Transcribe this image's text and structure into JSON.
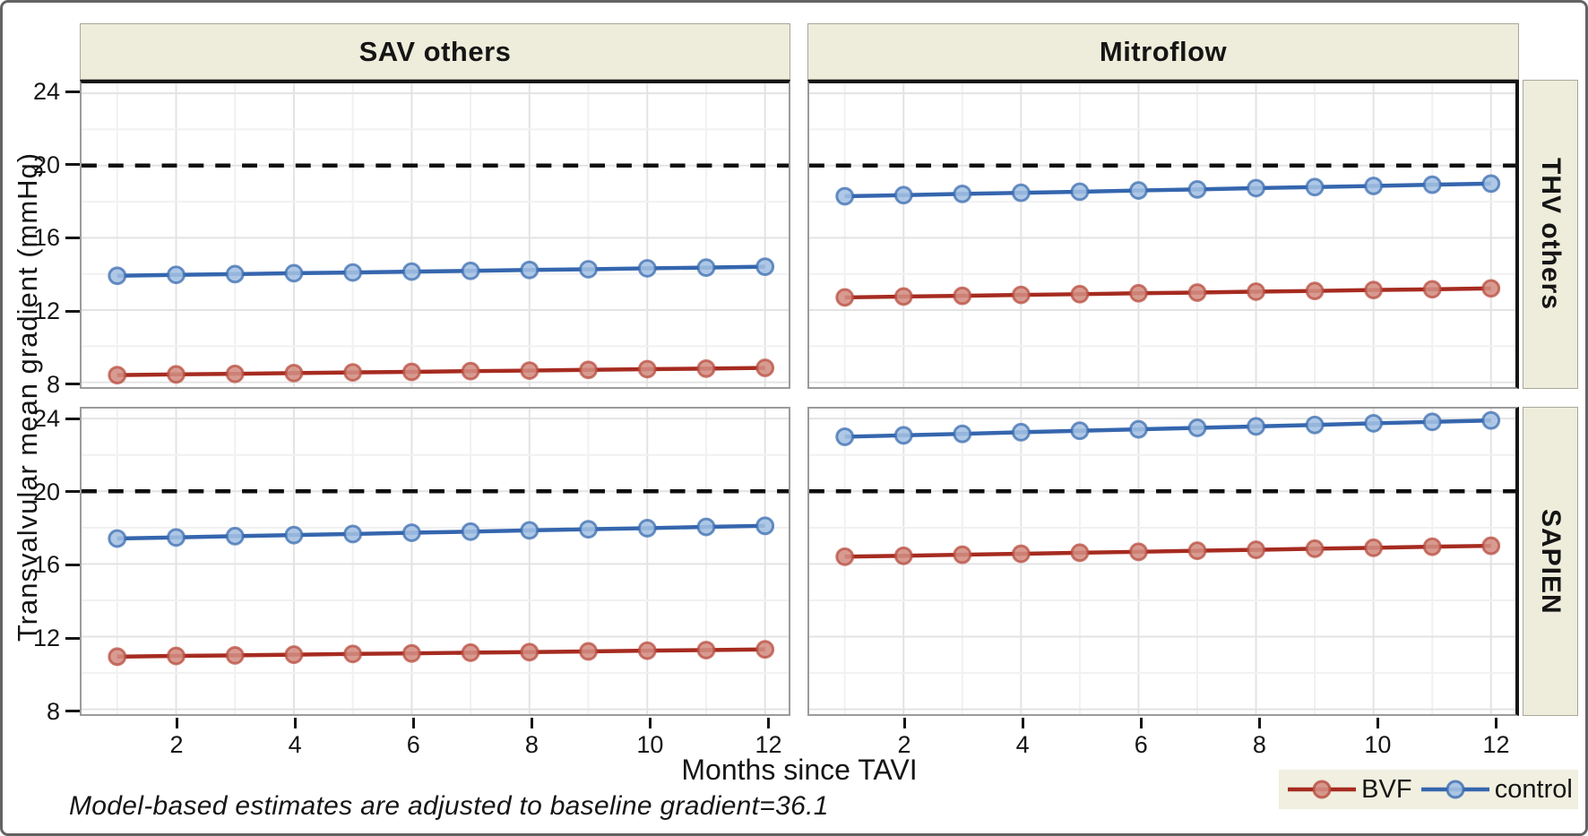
{
  "figure": {
    "y_axis_title": "Transvalvular mean gradient (mmHg)",
    "x_axis_title": "Months since TAVI",
    "footnote": "Model-based estimates are adjusted to baseline gradient=36.1"
  },
  "facets": {
    "columns": [
      "SAV others",
      "Mitroflow"
    ],
    "rows": [
      "THV others",
      "SAPIEN"
    ]
  },
  "axes": {
    "y_ticks": [
      24,
      20,
      16,
      12,
      8
    ],
    "x_ticks": [
      2,
      4,
      6,
      8,
      10,
      12
    ],
    "y_range": [
      7.85,
      24.55
    ],
    "x_range": [
      1,
      12
    ]
  },
  "legend": {
    "entries": [
      {
        "label": "BVF",
        "color": "#a62b20",
        "marker_fill": "#d38d82",
        "marker_ring": "#b84c3f"
      },
      {
        "label": "control",
        "color": "#3566ae",
        "marker_fill": "#a3c0e2",
        "marker_ring": "#3b6cb0"
      }
    ]
  },
  "colors": {
    "strip_background": "#eeeddb",
    "panel_border": "#9b9b9b",
    "grid_major": "#e3e3e3",
    "grid_minor": "#f1f1f1",
    "reference_line": "#0d0d0d",
    "text": "#151515"
  },
  "chart_data": {
    "type": "line",
    "x": [
      1,
      2,
      3,
      4,
      5,
      6,
      7,
      8,
      9,
      10,
      11,
      12
    ],
    "xlabel": "Months since TAVI",
    "ylabel": "Transvalvular mean gradient (mmHg)",
    "ylim": [
      7.85,
      24.55
    ],
    "grid": true,
    "legend_position": "bottom-right",
    "reference_line_y": 20,
    "panels": [
      {
        "row": "THV others",
        "column": "SAV others",
        "series": [
          {
            "name": "BVF",
            "values": [
              8.4,
              8.44,
              8.47,
              8.51,
              8.55,
              8.58,
              8.62,
              8.65,
              8.69,
              8.73,
              8.76,
              8.8
            ]
          },
          {
            "name": "control",
            "values": [
              13.9,
              13.95,
              13.99,
              14.04,
              14.08,
              14.13,
              14.17,
              14.22,
              14.26,
              14.31,
              14.35,
              14.4
            ]
          }
        ]
      },
      {
        "row": "THV others",
        "column": "Mitroflow",
        "series": [
          {
            "name": "BVF",
            "values": [
              12.7,
              12.75,
              12.79,
              12.84,
              12.88,
              12.93,
              12.97,
              13.02,
              13.06,
              13.11,
              13.15,
              13.2
            ]
          },
          {
            "name": "control",
            "values": [
              18.3,
              18.36,
              18.43,
              18.49,
              18.55,
              18.62,
              18.68,
              18.75,
              18.81,
              18.87,
              18.94,
              19.0
            ]
          }
        ]
      },
      {
        "row": "SAPIEN",
        "column": "SAV others",
        "series": [
          {
            "name": "BVF",
            "values": [
              10.9,
              10.94,
              10.97,
              11.01,
              11.05,
              11.08,
              11.12,
              11.15,
              11.19,
              11.23,
              11.26,
              11.3
            ]
          },
          {
            "name": "control",
            "values": [
              17.4,
              17.46,
              17.53,
              17.59,
              17.65,
              17.72,
              17.78,
              17.85,
              17.91,
              17.97,
              18.04,
              18.1
            ]
          }
        ]
      },
      {
        "row": "SAPIEN",
        "column": "Mitroflow",
        "series": [
          {
            "name": "BVF",
            "values": [
              16.4,
              16.45,
              16.51,
              16.56,
              16.62,
              16.67,
              16.73,
              16.78,
              16.84,
              16.89,
              16.95,
              17.0
            ]
          },
          {
            "name": "control",
            "values": [
              23.0,
              23.08,
              23.16,
              23.25,
              23.33,
              23.41,
              23.49,
              23.57,
              23.65,
              23.74,
              23.82,
              23.9
            ]
          }
        ]
      }
    ]
  }
}
